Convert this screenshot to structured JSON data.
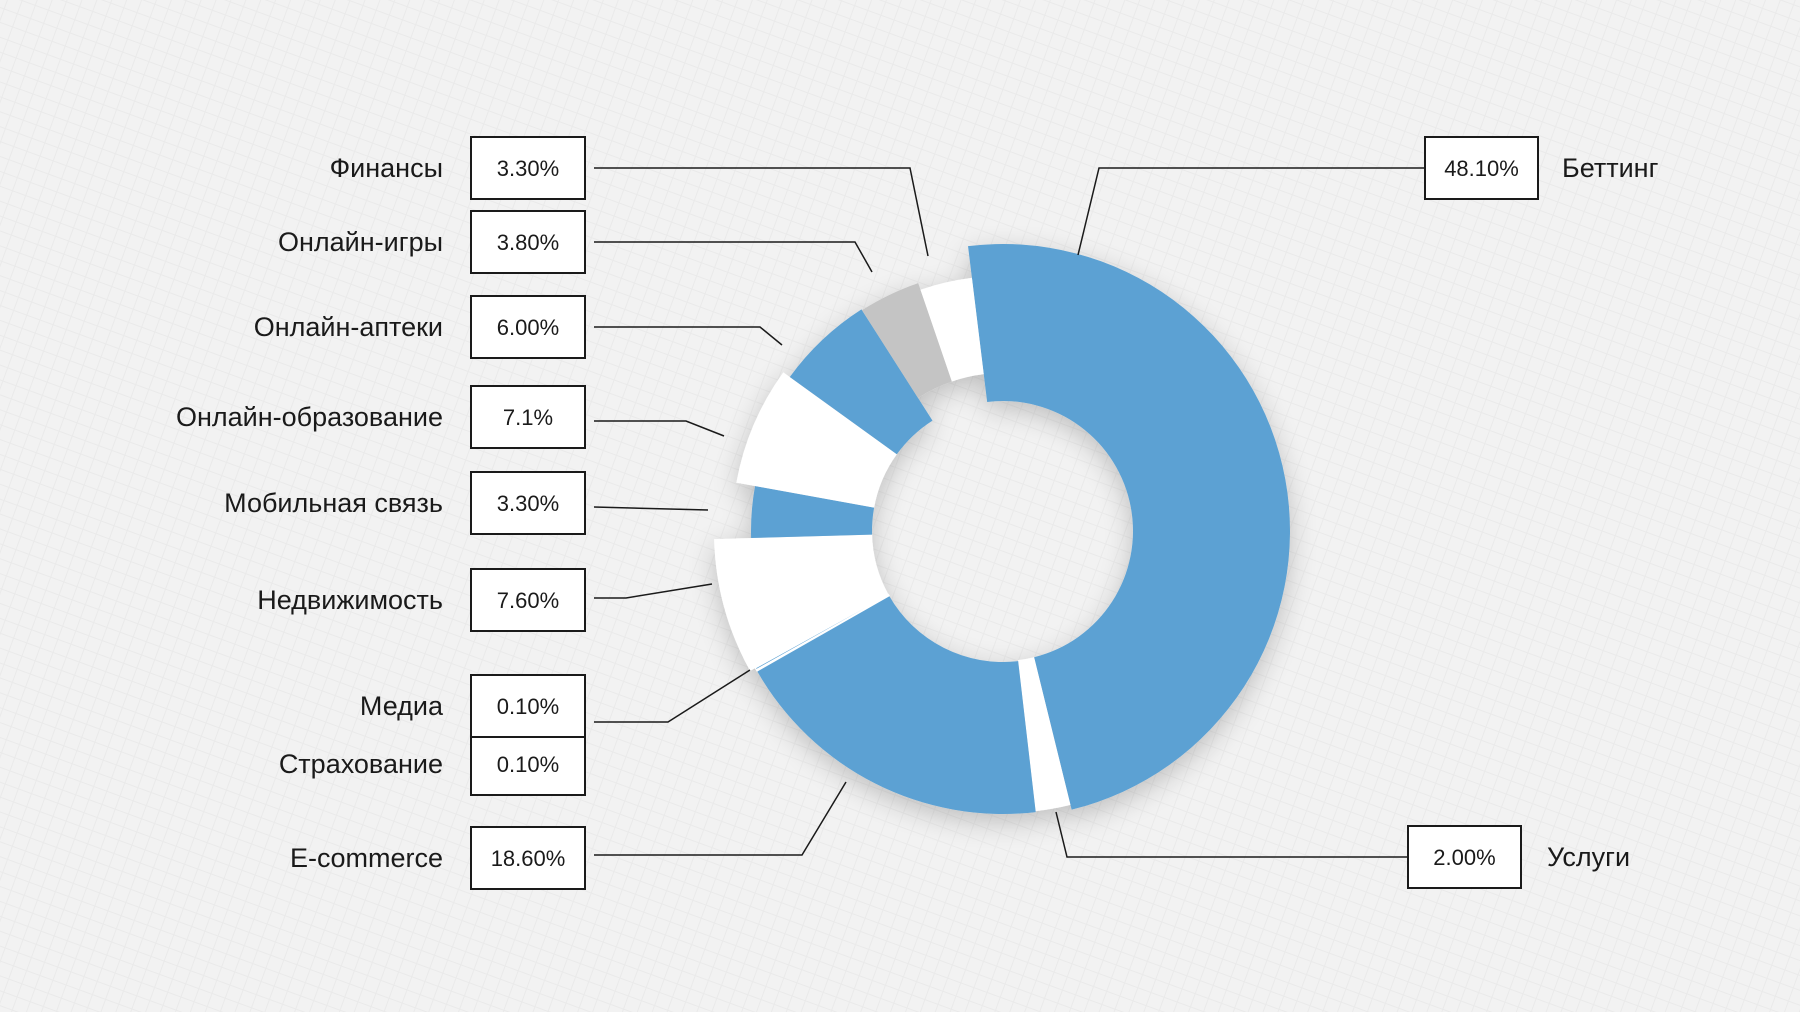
{
  "chart_data": {
    "type": "pie",
    "variant": "donut",
    "series": [
      {
        "label": "Беттинг",
        "value": 48.1,
        "display": "48.10%",
        "color": "#5ca1d3"
      },
      {
        "label": "Услуги",
        "value": 2.0,
        "display": "2.00%",
        "color": "#ffffff"
      },
      {
        "label": "E-commerce",
        "value": 18.6,
        "display": "18.60%",
        "color": "#5ca1d3"
      },
      {
        "label": "Страхование",
        "value": 0.1,
        "display": "0.10%",
        "color": "#ffffff"
      },
      {
        "label": "Медиа",
        "value": 0.1,
        "display": "0.10%",
        "color": "#5ca1d3"
      },
      {
        "label": "Недвижимость",
        "value": 7.6,
        "display": "7.60%",
        "color": "#ffffff"
      },
      {
        "label": "Мобильная связь",
        "value": 3.3,
        "display": "3.30%",
        "color": "#5ca1d3"
      },
      {
        "label": "Онлайн-образование",
        "value": 7.1,
        "display": "7.1%",
        "color": "#ffffff"
      },
      {
        "label": "Онлайн-аптеки",
        "value": 6.0,
        "display": "6.00%",
        "color": "#5ca1d3"
      },
      {
        "label": "Онлайн-игры",
        "value": 3.8,
        "display": "3.80%",
        "color": "#c4c4c4"
      },
      {
        "label": "Финансы",
        "value": 3.3,
        "display": "3.30%",
        "color": "#ffffff"
      }
    ],
    "legend": "none",
    "title": ""
  }
}
